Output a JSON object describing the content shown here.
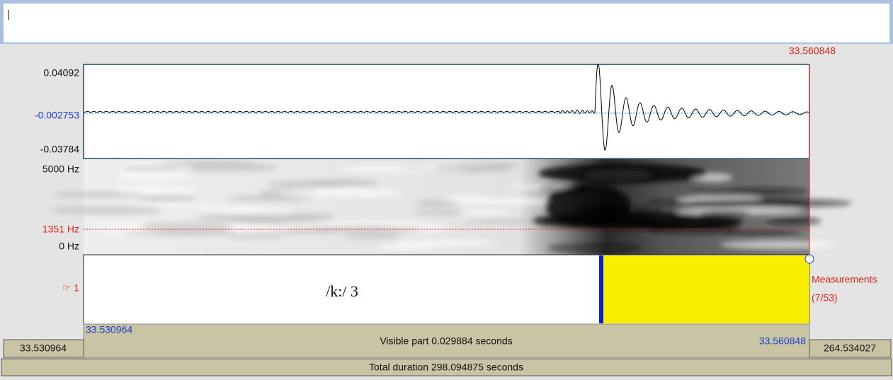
{
  "cursor_time": "33.560848",
  "waveform": {
    "max": "0.04092",
    "zero": "-0.002753",
    "min": "-0.03784"
  },
  "spectrogram": {
    "max": "5000 Hz",
    "cursor": "1351 Hz",
    "min": "0 Hz"
  },
  "tier": {
    "label": "☞ 1",
    "interval_text": "/k:/ 3",
    "measurements": [
      "Measurements",
      "(7/53)"
    ]
  },
  "bottom": {
    "window_start": "33.530964",
    "visible_part": "Visible part 0.029884 seconds",
    "window_end": "33.560848",
    "left_time": "33.530964",
    "right_time": "264.534027",
    "total_duration": "Total duration 298.094875 seconds"
  }
}
